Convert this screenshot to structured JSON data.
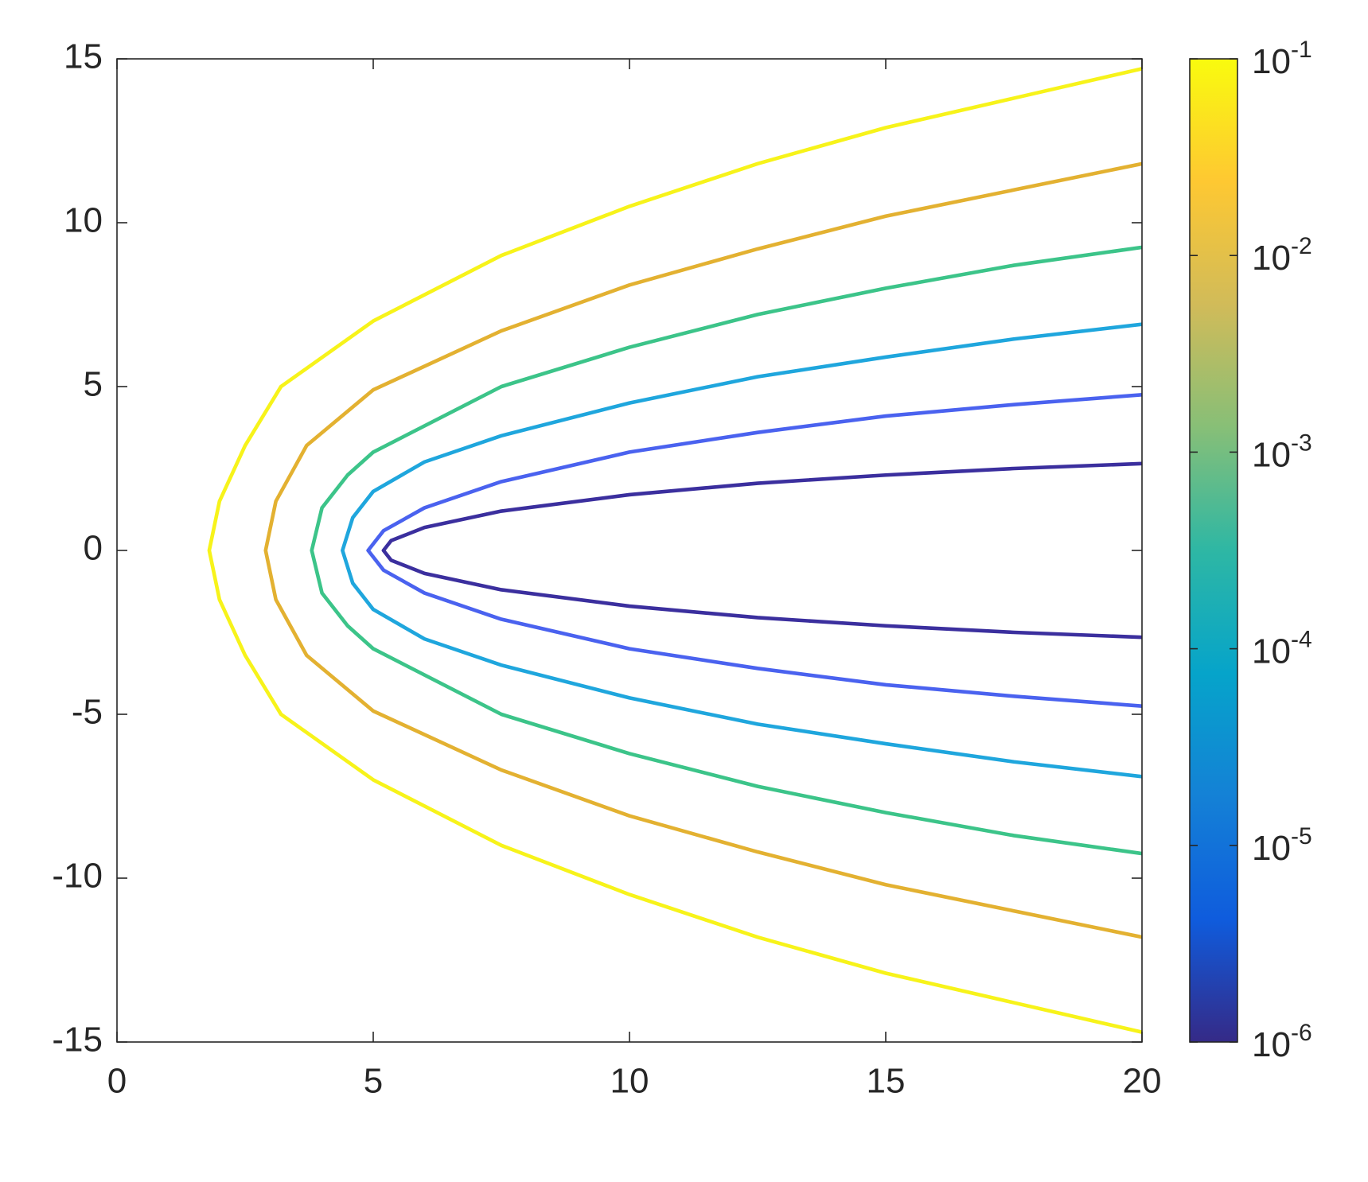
{
  "chart_data": {
    "type": "contour",
    "xlim": [
      0,
      20
    ],
    "xticks": [
      0,
      5,
      10,
      15,
      20
    ],
    "ylim": [
      -15,
      15
    ],
    "yticks": [
      -15,
      -10,
      -5,
      0,
      5,
      10,
      15
    ],
    "series": [
      {
        "color": "#3b2f9e",
        "x": [
          20,
          17.5,
          15,
          12.5,
          10,
          7.5,
          6,
          5.35,
          5.2,
          5.35,
          6,
          7.5,
          10,
          12.5,
          15,
          17.5,
          20
        ],
        "y": [
          -2.65,
          -2.5,
          -2.3,
          -2.05,
          -1.7,
          -1.2,
          -0.7,
          -0.3,
          0,
          0.3,
          0.7,
          1.2,
          1.7,
          2.05,
          2.3,
          2.5,
          2.65
        ]
      },
      {
        "color": "#4a62ef",
        "x": [
          20,
          17.5,
          15,
          12.5,
          10,
          7.5,
          6,
          5.2,
          4.9,
          5.2,
          6,
          7.5,
          10,
          12.5,
          15,
          17.5,
          20
        ],
        "y": [
          -4.75,
          -4.45,
          -4.1,
          -3.6,
          -3,
          -2.1,
          -1.3,
          -0.6,
          0,
          0.6,
          1.3,
          2.1,
          3,
          3.6,
          4.1,
          4.45,
          4.75
        ]
      },
      {
        "color": "#1fa6dd",
        "x": [
          20,
          17.5,
          15,
          12.5,
          10,
          7.5,
          6,
          5,
          4.6,
          4.4,
          4.6,
          5,
          6,
          7.5,
          10,
          12.5,
          15,
          17.5,
          20
        ],
        "y": [
          -6.9,
          -6.45,
          -5.9,
          -5.3,
          -4.5,
          -3.5,
          -2.7,
          -1.8,
          -1,
          0,
          1,
          1.8,
          2.7,
          3.5,
          4.5,
          5.3,
          5.9,
          6.45,
          6.9
        ]
      },
      {
        "color": "#3cc489",
        "x": [
          20,
          17.5,
          15,
          12.5,
          10,
          7.5,
          5,
          4.5,
          4,
          3.8,
          4,
          4.5,
          5,
          7.5,
          10,
          12.5,
          15,
          17.5,
          20
        ],
        "y": [
          -9.25,
          -8.7,
          -8,
          -7.2,
          -6.2,
          -5,
          -3,
          -2.3,
          -1.3,
          0,
          1.3,
          2.3,
          3,
          5,
          6.2,
          7.2,
          8,
          8.7,
          9.25
        ]
      },
      {
        "color": "#e3b131",
        "x": [
          20,
          17.5,
          15,
          12.5,
          10,
          7.5,
          5,
          3.7,
          3.1,
          2.9,
          3.1,
          3.7,
          5,
          7.5,
          10,
          12.5,
          15,
          17.5,
          20
        ],
        "y": [
          -11.8,
          -11,
          -10.2,
          -9.2,
          -8.1,
          -6.7,
          -4.9,
          -3.2,
          -1.5,
          0,
          1.5,
          3.2,
          4.9,
          6.7,
          8.1,
          9.2,
          10.2,
          11,
          11.8
        ]
      },
      {
        "color": "#f7f31a",
        "x": [
          20,
          17.5,
          15,
          12.5,
          10,
          7.5,
          5,
          3.2,
          2.5,
          2,
          1.8,
          2,
          2.5,
          3.2,
          5,
          7.5,
          10,
          12.5,
          15,
          17.5,
          20
        ],
        "y": [
          -14.7,
          -13.8,
          -12.9,
          -11.8,
          -10.5,
          -9,
          -7,
          -5,
          -3.2,
          -1.5,
          0,
          1.5,
          3.2,
          5,
          7,
          9,
          10.5,
          11.8,
          12.9,
          13.8,
          14.7
        ]
      }
    ],
    "colorbar": {
      "scale": "log",
      "lim": [
        1e-06,
        0.1
      ],
      "ticks": [
        {
          "value": 1e-06,
          "label": "10-6"
        },
        {
          "value": 1e-05,
          "label": "10-5"
        },
        {
          "value": 0.0001,
          "label": "10-4"
        },
        {
          "value": 0.001,
          "label": "10-3"
        },
        {
          "value": 0.01,
          "label": "10-2"
        },
        {
          "value": 0.1,
          "label": "10-1"
        }
      ],
      "colormap": [
        "#352a87",
        "#0f5cdd",
        "#1481d6",
        "#06a4ca",
        "#2eb7a4",
        "#87bf77",
        "#d1bb59",
        "#fec832",
        "#f9fb0e"
      ]
    }
  }
}
